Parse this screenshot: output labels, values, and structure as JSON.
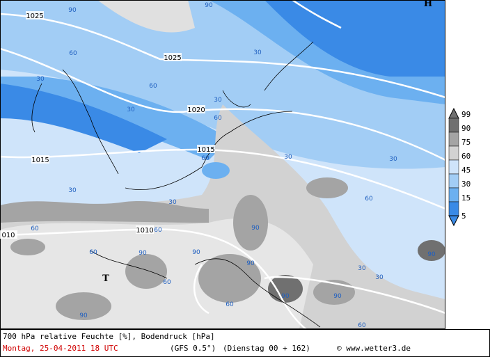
{
  "map": {
    "isobar_labels": [
      "1025",
      "1025",
      "1020",
      "1015",
      "1015",
      "1010",
      "010"
    ],
    "pressure_centers": [
      "H",
      "T"
    ],
    "humidity_labels": [
      "90",
      "90",
      "30",
      "60",
      "30",
      "60",
      "30",
      "30",
      "60",
      "60",
      "30",
      "30",
      "30",
      "30",
      "60",
      "60",
      "60",
      "90",
      "90",
      "90",
      "60",
      "90",
      "30",
      "60",
      "90",
      "90",
      "60",
      "90",
      "90",
      "60",
      "30"
    ]
  },
  "legend": {
    "levels": [
      "99",
      "90",
      "75",
      "60",
      "45",
      "30",
      "15",
      "5"
    ],
    "colors": [
      "#707070",
      "#a4a4a4",
      "#d2d2d2",
      "#cfe4fa",
      "#a2cdf5",
      "#6cb0f0",
      "#3a8ae6"
    ]
  },
  "footer": {
    "title": "700 hPa relative Feuchte [%], Bodendruck [hPa]",
    "date": "Montag, 25-04-2011  18 UTC",
    "model": "(GFS 0.5°)",
    "run": "(Dienstag 00 + 162)",
    "credit": "© www.wetter3.de"
  }
}
